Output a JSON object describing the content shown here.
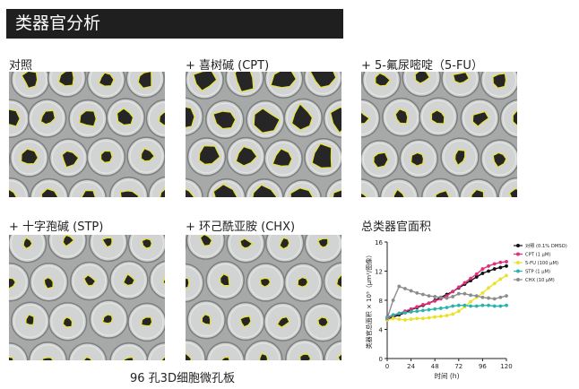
{
  "header": {
    "title": "类器官分析"
  },
  "panels": [
    {
      "label": "对照"
    },
    {
      "label": "+ 喜树碱 (CPT)"
    },
    {
      "label": "+ 5-氟尿嘧啶（5-FU）"
    },
    {
      "label": "+ 十字孢碱 (STP)"
    },
    {
      "label": "+ 环己酰亚胺 (CHX)"
    }
  ],
  "caption": "96 孔3D细胞微孔板",
  "chart_title": "总类器官面积",
  "colors": {
    "control": "#111111",
    "cpt": "#e0307c",
    "fu": "#ece12a",
    "stp": "#2bb3b0",
    "chx": "#8c8c8c",
    "outline": "#e8e23a"
  },
  "chart_data": {
    "type": "line",
    "title": "总类器官面积",
    "xlabel": "时间 (h)",
    "ylabel": "类器官总面积 × 10⁵（μm²/图像）",
    "xlim": [
      0,
      120
    ],
    "ylim": [
      0,
      16
    ],
    "xticks": [
      0,
      24,
      48,
      72,
      96,
      120
    ],
    "yticks": [
      0,
      4,
      8,
      12,
      16
    ],
    "x": [
      0,
      6,
      12,
      18,
      24,
      30,
      36,
      42,
      48,
      54,
      60,
      66,
      72,
      78,
      84,
      90,
      96,
      102,
      108,
      114,
      120
    ],
    "series": [
      {
        "name": "对照 (0.1% DMSO)",
        "color": "#111111",
        "values": [
          5.3,
          5.7,
          6.0,
          6.3,
          6.7,
          7.0,
          7.3,
          7.6,
          8.0,
          8.4,
          8.8,
          9.2,
          9.7,
          10.2,
          10.7,
          11.2,
          11.7,
          12.0,
          12.3,
          12.5,
          12.7
        ]
      },
      {
        "name": "CPT (1 μM)",
        "color": "#e0307c",
        "values": [
          5.5,
          5.9,
          6.2,
          6.5,
          6.8,
          7.1,
          7.4,
          7.6,
          7.9,
          8.2,
          8.6,
          9.2,
          9.8,
          10.4,
          11.0,
          11.6,
          12.3,
          12.7,
          13.0,
          13.2,
          13.3
        ]
      },
      {
        "name": "5-FU (100 μM)",
        "color": "#ece12a",
        "values": [
          5.3,
          5.5,
          5.4,
          5.3,
          5.4,
          5.5,
          5.5,
          5.6,
          5.7,
          5.8,
          5.9,
          6.1,
          6.5,
          7.1,
          7.8,
          8.4,
          9.0,
          9.7,
          10.3,
          10.9,
          11.4
        ]
      },
      {
        "name": "STP (1 μM)",
        "color": "#2bb3b0",
        "values": [
          5.7,
          6.0,
          6.2,
          6.3,
          6.4,
          6.5,
          6.6,
          6.7,
          6.8,
          6.9,
          7.0,
          7.2,
          7.3,
          7.3,
          7.2,
          7.2,
          7.3,
          7.3,
          7.2,
          7.2,
          7.3
        ]
      },
      {
        "name": "CHX (10 μM)",
        "color": "#8c8c8c",
        "values": [
          5.5,
          8.0,
          9.9,
          9.6,
          9.3,
          9.0,
          8.8,
          8.6,
          8.5,
          8.4,
          8.3,
          8.5,
          8.9,
          8.9,
          8.7,
          8.6,
          8.4,
          8.3,
          8.2,
          8.4,
          8.6
        ]
      }
    ]
  }
}
